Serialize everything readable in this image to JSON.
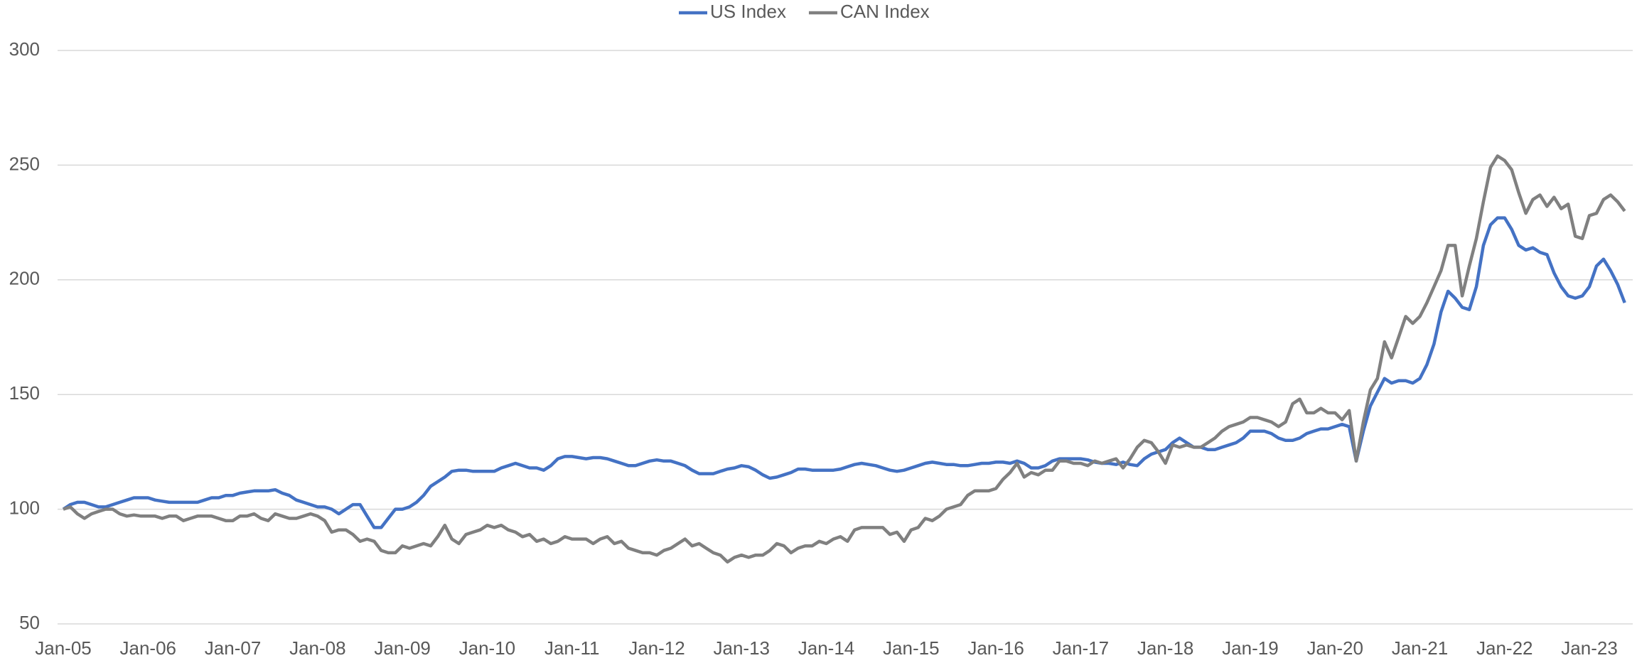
{
  "chart_data": {
    "type": "line",
    "categories": [
      "Jan-05",
      null,
      null,
      null,
      null,
      null,
      null,
      null,
      null,
      null,
      null,
      null,
      "Jan-06",
      null,
      null,
      null,
      null,
      null,
      null,
      null,
      null,
      null,
      null,
      null,
      "Jan-07",
      null,
      null,
      null,
      null,
      null,
      null,
      null,
      null,
      null,
      null,
      null,
      "Jan-08",
      null,
      null,
      null,
      null,
      null,
      null,
      null,
      null,
      null,
      null,
      null,
      "Jan-09",
      null,
      null,
      null,
      null,
      null,
      null,
      null,
      null,
      null,
      null,
      null,
      "Jan-10",
      null,
      null,
      null,
      null,
      null,
      null,
      null,
      null,
      null,
      null,
      null,
      "Jan-11",
      null,
      null,
      null,
      null,
      null,
      null,
      null,
      null,
      null,
      null,
      null,
      "Jan-12",
      null,
      null,
      null,
      null,
      null,
      null,
      null,
      null,
      null,
      null,
      null,
      "Jan-13",
      null,
      null,
      null,
      null,
      null,
      null,
      null,
      null,
      null,
      null,
      null,
      "Jan-14",
      null,
      null,
      null,
      null,
      null,
      null,
      null,
      null,
      null,
      null,
      null,
      "Jan-15",
      null,
      null,
      null,
      null,
      null,
      null,
      null,
      null,
      null,
      null,
      null,
      "Jan-16",
      null,
      null,
      null,
      null,
      null,
      null,
      null,
      null,
      null,
      null,
      null,
      "Jan-17",
      null,
      null,
      null,
      null,
      null,
      null,
      null,
      null,
      null,
      null,
      null,
      "Jan-18",
      null,
      null,
      null,
      null,
      null,
      null,
      null,
      null,
      null,
      null,
      null,
      "Jan-19",
      null,
      null,
      null,
      null,
      null,
      null,
      null,
      null,
      null,
      null,
      null,
      "Jan-20",
      null,
      null,
      null,
      null,
      null,
      null,
      null,
      null,
      null,
      null,
      null,
      "Jan-21",
      null,
      null,
      null,
      null,
      null,
      null,
      null,
      null,
      null,
      null,
      null,
      "Jan-22",
      null,
      null,
      null,
      null,
      null,
      null,
      null,
      null,
      null,
      null,
      null,
      "Jan-23",
      null,
      null,
      null,
      null,
      null
    ],
    "series": [
      {
        "name": "US Index",
        "color": "#4472c4",
        "values": [
          100,
          102,
          103,
          103,
          102,
          101,
          101,
          102,
          103,
          104,
          105,
          105,
          105,
          104,
          103.5,
          103,
          103,
          103,
          103,
          103,
          104,
          105,
          105,
          106,
          106,
          107,
          107.5,
          108,
          108,
          108,
          108.5,
          107,
          106,
          104,
          103,
          102,
          101,
          101,
          100,
          98,
          100,
          102,
          102,
          97,
          92,
          92,
          96,
          100,
          100,
          101,
          103,
          106,
          110,
          112,
          114,
          116.5,
          117,
          117,
          116.5,
          116.5,
          116.5,
          116.5,
          118,
          119,
          120,
          119,
          118,
          118,
          117,
          119,
          122,
          123,
          123,
          122.5,
          122,
          122.5,
          122.5,
          122,
          121,
          120,
          119,
          119,
          120,
          121,
          121.5,
          121,
          121,
          120,
          119,
          117,
          115.5,
          115.5,
          115.5,
          116.5,
          117.5,
          118,
          119,
          118.5,
          117,
          115,
          113.5,
          114,
          115,
          116,
          117.5,
          117.5,
          117,
          117,
          117,
          117,
          117.5,
          118.5,
          119.5,
          120,
          119.5,
          119,
          118,
          117,
          116.5,
          117,
          118,
          119,
          120,
          120.5,
          120,
          119.5,
          119.5,
          119,
          119,
          119.5,
          120,
          120,
          120.5,
          120.5,
          120,
          121,
          120,
          118,
          118,
          119,
          121,
          122,
          122,
          122,
          122,
          121.5,
          120.5,
          120,
          120,
          119.5,
          120.5,
          119.5,
          119,
          122,
          124,
          125,
          126,
          129,
          131,
          129,
          127,
          127,
          126,
          126,
          127,
          128,
          129,
          131,
          134,
          134,
          134,
          133,
          131,
          130,
          130,
          131,
          133,
          134,
          135,
          135,
          136,
          137,
          136,
          121,
          134,
          145,
          151,
          157,
          155,
          156,
          156,
          155,
          157,
          163,
          172,
          186,
          195,
          192,
          188,
          187,
          197,
          215,
          224,
          227,
          227,
          222,
          215,
          213,
          214,
          212,
          211,
          203,
          197,
          193,
          192,
          193,
          197,
          206,
          209,
          204,
          198,
          190
        ]
      },
      {
        "name": "CAN Index",
        "color": "#808080",
        "values": [
          100,
          101,
          98,
          96,
          98,
          99,
          100,
          100,
          98,
          97,
          97.5,
          97,
          97,
          97,
          96,
          97,
          97,
          95,
          96,
          97,
          97,
          97,
          96,
          95,
          95,
          97,
          97,
          98,
          96,
          95,
          98,
          97,
          96,
          96,
          97,
          98,
          97,
          95,
          90,
          91,
          91,
          89,
          86,
          87,
          86,
          82,
          81,
          81,
          84,
          83,
          84,
          85,
          84,
          88,
          93,
          87,
          85,
          89,
          90,
          91,
          93,
          92,
          93,
          91,
          90,
          88,
          89,
          86,
          87,
          85,
          86,
          88,
          87,
          87,
          87,
          85,
          87,
          88,
          85,
          86,
          83,
          82,
          81,
          81,
          80,
          82,
          83,
          85,
          87,
          84,
          85,
          83,
          81,
          80,
          77,
          79,
          80,
          79,
          80,
          80,
          82,
          85,
          84,
          81,
          83,
          84,
          84,
          86,
          85,
          87,
          88,
          86,
          91,
          92,
          92,
          92,
          92,
          89,
          90,
          86,
          91,
          92,
          96,
          95,
          97,
          100,
          101,
          102,
          106,
          108,
          108,
          108,
          109,
          113,
          116,
          120,
          114,
          116,
          115,
          117,
          117,
          121,
          121,
          120,
          120,
          119,
          121,
          120,
          121,
          122,
          118,
          122,
          127,
          130,
          129,
          125,
          120,
          128,
          127,
          128,
          127,
          127,
          129,
          131,
          134,
          136,
          137,
          138,
          140,
          140,
          139,
          138,
          136,
          138,
          146,
          148,
          142,
          142,
          144,
          142,
          142,
          139,
          143,
          121,
          138,
          152,
          157,
          173,
          166,
          175,
          184,
          181,
          184,
          190,
          197,
          204,
          215,
          215,
          193,
          206,
          218,
          234,
          249,
          254,
          252,
          248,
          238,
          229,
          235,
          237,
          232,
          236,
          231,
          233,
          219,
          218,
          228,
          229,
          235,
          237,
          234,
          230
        ]
      }
    ],
    "ylim": [
      50,
      300
    ],
    "yticks": [
      50,
      100,
      150,
      200,
      250,
      300
    ],
    "grid": true,
    "legend": "top"
  }
}
